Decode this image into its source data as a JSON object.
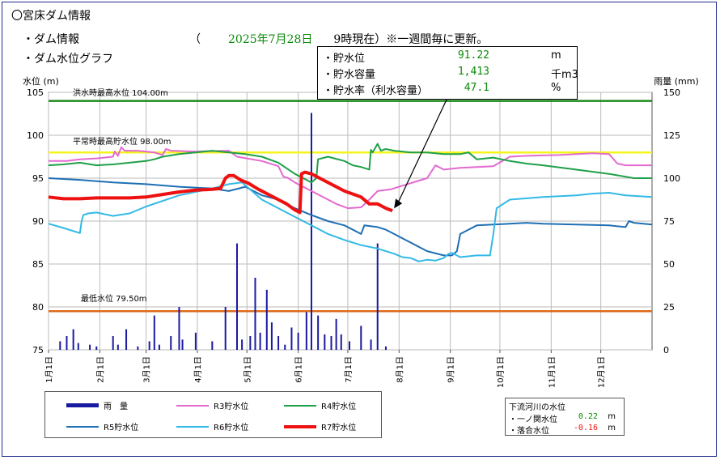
{
  "header": {
    "title": "〇宮床ダム情報",
    "line1": "・ダム情報",
    "line2": "・ダム水位グラフ",
    "date_open": "（",
    "date_value": "2025年7月28日",
    "date_time": "9時現在）",
    "date_note": "※一週間毎に更新。"
  },
  "info": {
    "rows": [
      {
        "label": "・貯水位",
        "value": "91.22",
        "unit": "m"
      },
      {
        "label": "・貯水容量",
        "value": "1,413",
        "unit": "千m3"
      },
      {
        "label": "・貯水率（利水容量）",
        "value": "47.1",
        "unit": "%"
      }
    ]
  },
  "legend": {
    "items": [
      {
        "label": "雨　量",
        "color": "#1a1aa0"
      },
      {
        "label": "R3貯水位",
        "color": "#e36ad0"
      },
      {
        "label": "R4貯水位",
        "color": "#1fa049"
      },
      {
        "label": "R5貯水位",
        "color": "#1e6fb4"
      },
      {
        "label": "R6貯水位",
        "color": "#33b9e6"
      },
      {
        "label": "R7貯水位",
        "color": "#ee1111"
      }
    ]
  },
  "river": {
    "title": "下流河川の水位",
    "rows": [
      {
        "label": "・一ノ関水位",
        "value": "0.22",
        "unit": "m",
        "color": "#0a8a0a"
      },
      {
        "label": "・落合水位",
        "value": "-0.16",
        "unit": "m",
        "color": "#ee1111"
      }
    ]
  },
  "chart_data": {
    "type": "line",
    "ylabel": "水位 (m)",
    "y2label": "雨量 (mm)",
    "ylim": [
      75,
      105
    ],
    "y2lim": [
      0,
      150
    ],
    "yticks": [
      75,
      80,
      85,
      90,
      95,
      100,
      105
    ],
    "y2ticks": [
      0,
      25,
      50,
      75,
      100,
      125,
      150
    ],
    "x_unit": "day of year",
    "xlim": [
      1,
      366
    ],
    "xticks": [
      {
        "label": "1月1日",
        "day": 1
      },
      {
        "label": "2月1日",
        "day": 32
      },
      {
        "label": "3月1日",
        "day": 60
      },
      {
        "label": "4月1日",
        "day": 91
      },
      {
        "label": "5月1日",
        "day": 121
      },
      {
        "label": "6月1日",
        "day": 152
      },
      {
        "label": "7月1日",
        "day": 182
      },
      {
        "label": "8月1日",
        "day": 213
      },
      {
        "label": "9月1日",
        "day": 244
      },
      {
        "label": "10月1日",
        "day": 274
      },
      {
        "label": "11月1日",
        "day": 305
      },
      {
        "label": "12月1日",
        "day": 335
      }
    ],
    "reference_lines": [
      {
        "label": "洪水時最高水位 104.00m",
        "value": 104.0,
        "color": "#1f8a1f"
      },
      {
        "label": "平常時最高貯水位 98.00m",
        "value": 98.0,
        "color": "#f5f51e"
      },
      {
        "label": "最低水位 79.50m",
        "value": 79.5,
        "color": "#e06a1a"
      }
    ],
    "rain": {
      "name": "雨量",
      "x": [
        8,
        12,
        16,
        19,
        26,
        30,
        40,
        43,
        48,
        55,
        62,
        65,
        68,
        75,
        80,
        82,
        90,
        100,
        108,
        115,
        118,
        123,
        126,
        129,
        133,
        136,
        140,
        144,
        148,
        152,
        157,
        160,
        164,
        168,
        172,
        175,
        178,
        183,
        190,
        196,
        200,
        205
      ],
      "values": [
        5,
        8,
        12,
        4,
        3,
        2,
        8,
        3,
        12,
        2,
        5,
        20,
        3,
        8,
        25,
        6,
        10,
        5,
        25,
        62,
        6,
        8,
        42,
        10,
        35,
        16,
        8,
        3,
        13,
        10,
        22,
        138,
        20,
        9,
        8,
        18,
        9,
        5,
        14,
        6,
        62,
        2
      ]
    },
    "series": [
      {
        "name": "R3貯水位",
        "color": "#e36ad0",
        "x": [
          1,
          12,
          20,
          30,
          40,
          41,
          43,
          45,
          47,
          55,
          65,
          70,
          72,
          75,
          90,
          110,
          115,
          130,
          140,
          143,
          146,
          150,
          160,
          175,
          182,
          190,
          195,
          200,
          208,
          213,
          218,
          230,
          235,
          240,
          250,
          270,
          280,
          290,
          310,
          330,
          340,
          345,
          350,
          366
        ],
        "y": [
          97.0,
          97.0,
          97.2,
          97.3,
          97.5,
          98.1,
          97.6,
          98.6,
          98.2,
          98.2,
          98.0,
          97.7,
          98.4,
          98.2,
          98.1,
          98.2,
          97.5,
          97.0,
          96.4,
          95.2,
          95.0,
          94.5,
          93.5,
          92.0,
          91.5,
          91.6,
          92.5,
          93.5,
          93.7,
          94.0,
          94.3,
          95.0,
          96.5,
          96.0,
          96.2,
          96.4,
          97.5,
          97.6,
          97.7,
          97.9,
          97.8,
          96.7,
          96.5,
          96.5
        ]
      },
      {
        "name": "R4貯水位",
        "color": "#1fa049",
        "x": [
          1,
          10,
          20,
          30,
          40,
          50,
          60,
          65,
          70,
          80,
          90,
          100,
          110,
          120,
          130,
          140,
          150,
          160,
          163,
          164,
          170,
          180,
          185,
          190,
          195,
          196,
          197,
          200,
          202,
          205,
          210,
          220,
          230,
          240,
          250,
          255,
          260,
          270,
          280,
          290,
          300,
          320,
          340,
          355,
          366
        ],
        "y": [
          96.5,
          96.6,
          96.8,
          96.5,
          96.6,
          96.8,
          97.0,
          97.2,
          97.5,
          97.8,
          98.0,
          98.2,
          98.0,
          97.8,
          97.5,
          96.8,
          95.5,
          94.5,
          95.0,
          97.2,
          97.5,
          97.0,
          96.5,
          96.3,
          96.0,
          98.3,
          98.0,
          99.0,
          98.2,
          98.4,
          98.2,
          98.0,
          98.0,
          97.8,
          97.8,
          98.0,
          97.2,
          97.4,
          97.0,
          96.7,
          96.5,
          96.0,
          95.5,
          95.0,
          95.0
        ]
      },
      {
        "name": "R5貯水位",
        "color": "#1e6fb4",
        "x": [
          1,
          20,
          40,
          60,
          80,
          100,
          110,
          120,
          130,
          140,
          150,
          160,
          170,
          180,
          190,
          192,
          200,
          205,
          210,
          213,
          220,
          230,
          240,
          245,
          248,
          250,
          255,
          260,
          270,
          280,
          290,
          300,
          320,
          340,
          350,
          352,
          355,
          366
        ],
        "y": [
          95.0,
          94.8,
          94.5,
          94.3,
          94.0,
          93.8,
          93.5,
          94.0,
          93.0,
          92.5,
          91.5,
          90.7,
          90.0,
          89.5,
          88.5,
          89.5,
          89.3,
          89.0,
          88.5,
          88.2,
          87.5,
          86.5,
          86.0,
          86.0,
          86.5,
          88.5,
          89.0,
          89.5,
          89.6,
          89.7,
          89.8,
          89.7,
          89.6,
          89.5,
          89.3,
          90.0,
          89.8,
          89.6
        ]
      },
      {
        "name": "R6貯水位",
        "color": "#33b9e6",
        "x": [
          1,
          10,
          20,
          21,
          22,
          25,
          30,
          40,
          50,
          60,
          80,
          100,
          110,
          118,
          130,
          140,
          150,
          160,
          170,
          180,
          190,
          200,
          210,
          215,
          220,
          225,
          230,
          235,
          240,
          243,
          245,
          250,
          260,
          268,
          270,
          272,
          280,
          300,
          320,
          330,
          340,
          350,
          366
        ],
        "y": [
          89.7,
          89.2,
          88.6,
          90.0,
          90.7,
          90.9,
          91.0,
          90.6,
          90.9,
          91.7,
          93.0,
          93.8,
          94.3,
          94.5,
          92.5,
          91.5,
          90.5,
          89.5,
          88.5,
          87.8,
          87.2,
          86.8,
          86.2,
          85.8,
          85.7,
          85.3,
          85.5,
          85.4,
          85.7,
          86.2,
          86.3,
          85.8,
          86.0,
          86.0,
          88.5,
          91.5,
          92.5,
          92.8,
          93.0,
          93.2,
          93.3,
          93.0,
          92.8
        ]
      },
      {
        "name": "R7貯水位",
        "color": "#ee1111",
        "x": [
          1,
          10,
          20,
          30,
          50,
          60,
          70,
          80,
          90,
          100,
          105,
          108,
          110,
          113,
          117,
          122,
          128,
          135,
          140,
          145,
          150,
          153,
          154,
          156,
          160,
          165,
          170,
          180,
          190,
          195,
          200,
          205,
          209
        ],
        "y": [
          92.8,
          92.6,
          92.6,
          92.7,
          92.7,
          92.8,
          93.1,
          93.4,
          93.6,
          93.7,
          93.8,
          95.0,
          95.3,
          95.3,
          94.8,
          94.4,
          93.7,
          93.0,
          92.5,
          92.0,
          91.3,
          91.0,
          95.5,
          95.7,
          95.5,
          95.0,
          94.5,
          93.5,
          92.8,
          92.0,
          92.0,
          91.5,
          91.2
        ]
      }
    ]
  }
}
